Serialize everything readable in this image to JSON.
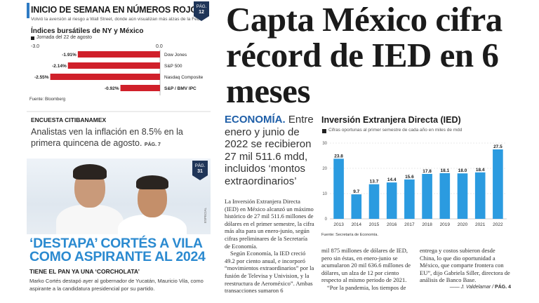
{
  "left_top": {
    "headline": "INICIO DE SEMANA EN NÚMEROS ROJOS",
    "subhead": "Volvió la aversión al riesgo a Wall Street, donde aún visualizan más alzas de la Fed",
    "page_badge": {
      "prefix": "PÁG.",
      "number": "12"
    },
    "chart_title": "Índices bursátiles de NY y México",
    "legend": "Jornada del 22 de agosto",
    "source": "Fuente: Bloomberg"
  },
  "chart_data": [
    {
      "type": "bar",
      "orientation": "horizontal",
      "title": "Índices bursátiles de NY y México",
      "axis_labels": [
        "-3.0",
        "0.0"
      ],
      "xlim": [
        -3.0,
        0.0
      ],
      "categories": [
        "Dow Jones",
        "S&P 500",
        "Nasdaq Composite",
        "S&P / BMV IPC"
      ],
      "values": [
        -1.91,
        -2.14,
        -2.55,
        -0.92
      ],
      "value_labels": [
        "-1.91%",
        "-2.14%",
        "-2.55%",
        "-0.92%"
      ],
      "color": "#d0202a"
    },
    {
      "type": "bar",
      "title": "Inversión Extranjera Directa (IED)",
      "subtitle": "Cifras oportunas al primer semestre de cada año en miles de mdd",
      "categories": [
        "2013",
        "2014",
        "2015",
        "2016",
        "2017",
        "2018",
        "2019",
        "2020",
        "2021",
        "2022"
      ],
      "values": [
        23.8,
        9.7,
        13.7,
        14.4,
        15.6,
        17.8,
        18.1,
        18.0,
        18.4,
        27.5
      ],
      "value_labels": [
        "23.8",
        "9.7",
        "13.7",
        "14.4",
        "15.6",
        "17.8",
        "18.1",
        "18.0",
        "18.4",
        "27.5"
      ],
      "yticks": [
        0,
        10,
        20,
        30
      ],
      "ylim": [
        0,
        30
      ],
      "color": "#2b9be0",
      "source": "Fuente: Secretaría de Economía."
    }
  ],
  "encuesta": {
    "kicker": "ENCUESTA CITIBANAMEX",
    "headline": "Analistas ven la inflación en 8.5% en la primera quincena de agosto.",
    "page": "PÁG. 7"
  },
  "photo_story": {
    "page_badge": {
      "prefix": "PÁG.",
      "number": "31"
    },
    "photo_credit": "ESPECIAL",
    "headline": "‘DESTAPA’ CORTÉS A VILA COMO ASPIRANTE AL 2024",
    "label": "TIENE EL PAN YA UNA ‘CORCHOLATA’",
    "body": "Marko Cortés destapó ayer al gobernador de Yucatán, Mauricio Vila, como aspirante a la candidatura presidencial por su partido."
  },
  "main": {
    "headline": "Capta México cifra récord de IED en 6 meses",
    "lede_kicker": "ECONOMÍA.",
    "lede": "Entre enero y junio de 2022 se recibieron 27 mil 511.6 mdd, incluidos ‘montos extraordinarios’",
    "body_col1_p1": "La Inversión Extranjera Directa (IED) en México alcanzó un máximo histórico de 27 mil 511.6 millones de dólares en el primer semestre, la cifra más alta para un enero-junio, según cifras preliminares de la Secretaría de Economía.",
    "body_col1_p2": "Según Economía, la IED creció 49.2 por ciento anual, e incorporó “movimientos extraordinarios” por la fusión de Televisa y Univision, y la reestructura de Aeroméxico”. Ambas transacciones sumaron 6",
    "body_col2": "mil 875 millones de dólares de IED, pero sin éstas, en enero-junio se acumularon 20 mil 636.6 millones de dólares, un alza de 12 por ciento respecto al mismo periodo de 2021.",
    "body_col2_p2": "“Por la pandemia, los tiempos de",
    "body_col3": "entrega y costos subieron desde China, lo que dio oportunidad a México, que comparte frontera con EU”, dijo Gabriela Siller, directora de análisis de Banco Base.",
    "byline": "J. Valdelamar",
    "byline_page": "PÁG. 4"
  }
}
